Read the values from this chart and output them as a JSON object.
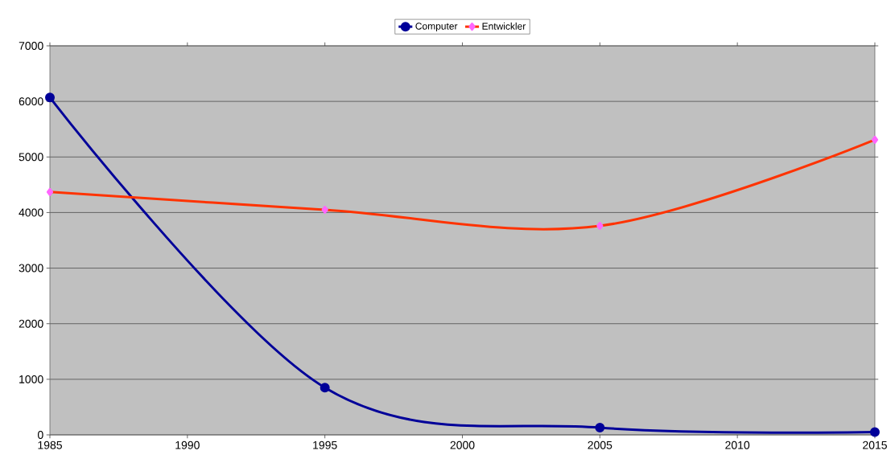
{
  "chart_data": {
    "type": "line",
    "x": [
      1985,
      1995,
      2005,
      2015
    ],
    "series": [
      {
        "name": "Computer",
        "color": "#000099",
        "values": [
          6070,
          850,
          130,
          50
        ],
        "marker": "circle"
      },
      {
        "name": "Entwickler",
        "color": "#ff3300",
        "values": [
          4370,
          4050,
          3760,
          5310
        ],
        "marker": "diamond",
        "colors": [
          "#ff66ff",
          "#ff66ff",
          "#ff66ff",
          "#ff66ff"
        ]
      }
    ],
    "xlim": [
      1985,
      2015
    ],
    "xticks": [
      1985,
      1990,
      1995,
      2000,
      2005,
      2010,
      2015
    ],
    "ylim": [
      0,
      7000
    ],
    "yticks": [
      0,
      1000,
      2000,
      3000,
      4000,
      5000,
      6000,
      7000
    ],
    "grid": "y",
    "legend": "top",
    "line_style": "solid"
  }
}
